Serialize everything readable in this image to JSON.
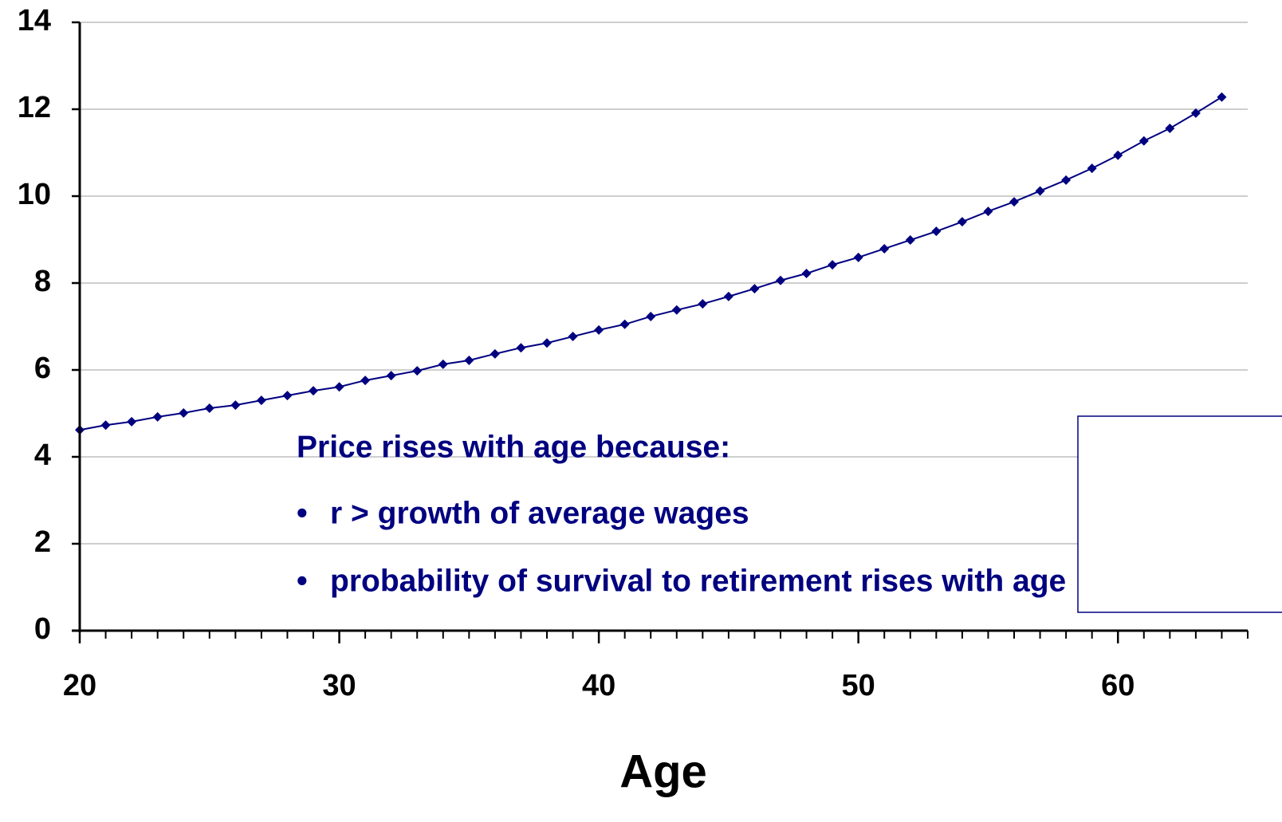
{
  "chart_data": {
    "type": "line",
    "x_label": "Age",
    "x": [
      20,
      21,
      22,
      23,
      24,
      25,
      26,
      27,
      28,
      29,
      30,
      31,
      32,
      33,
      34,
      35,
      36,
      37,
      38,
      39,
      40,
      41,
      42,
      43,
      44,
      45,
      46,
      47,
      48,
      49,
      50,
      51,
      52,
      53,
      54,
      55,
      56,
      57,
      58,
      59,
      60,
      61,
      62,
      63,
      64
    ],
    "series": [
      {
        "color": "#000080",
        "values": [
          4.62,
          4.73,
          4.81,
          4.92,
          5.01,
          5.12,
          5.19,
          5.3,
          5.41,
          5.52,
          5.61,
          5.76,
          5.87,
          5.98,
          6.13,
          6.22,
          6.37,
          6.51,
          6.62,
          6.77,
          6.92,
          7.05,
          7.23,
          7.38,
          7.52,
          7.69,
          7.87,
          8.06,
          8.22,
          8.42,
          8.59,
          8.79,
          8.99,
          9.19,
          9.41,
          9.65,
          9.87,
          10.12,
          10.37,
          10.64,
          10.94,
          11.27,
          11.56,
          11.91,
          12.28
        ]
      }
    ],
    "xlim": [
      20,
      65
    ],
    "xticks": [
      20,
      30,
      40,
      50,
      60
    ],
    "xminorticks": [
      21,
      22,
      23,
      24,
      25,
      26,
      27,
      28,
      29,
      31,
      32,
      33,
      34,
      35,
      36,
      37,
      38,
      39,
      41,
      42,
      43,
      44,
      45,
      46,
      47,
      48,
      49,
      51,
      52,
      53,
      54,
      55,
      56,
      57,
      58,
      59,
      61,
      62,
      63,
      64,
      65
    ],
    "ylim": [
      0,
      14
    ],
    "yticks": [
      0,
      2,
      4,
      6,
      8,
      10,
      12,
      14
    ],
    "grid": true,
    "annotation": {
      "title": "Price rises with age because:",
      "items": [
        "r > growth of average wages",
        "probability of survival to retirement rises with age"
      ]
    }
  }
}
